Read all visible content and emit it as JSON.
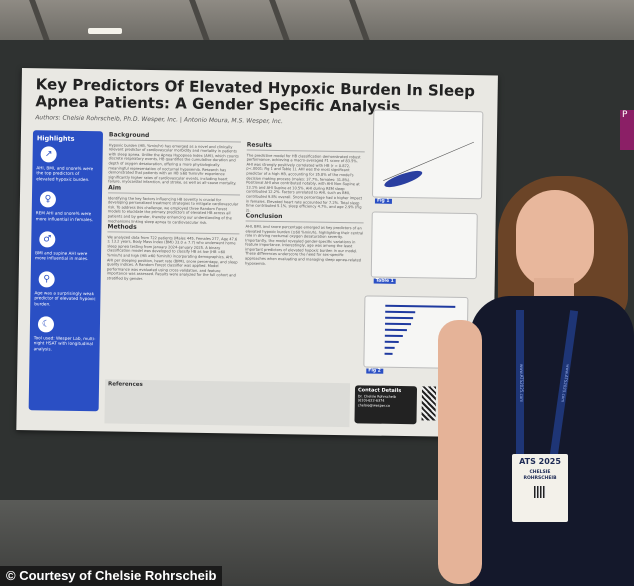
{
  "poster": {
    "title": "Key Predictors Of Elevated Hypoxic Burden In Sleep Apnea Patients: A Gender Specific Analysis",
    "authors": "Authors: Chelsie Rohrscheib, Ph.D. Wesper, Inc. | Antonio Moura, M.S. Wesper, Inc.",
    "highlights": {
      "heading": "Highlights",
      "items": [
        {
          "icon": "chart-icon",
          "text": "AHI, BMI, and snore% were the top predictors of elevated hypoxic burden."
        },
        {
          "icon": "female-icon",
          "text": "REM AHI and snore% were more influential in females."
        },
        {
          "icon": "male-icon",
          "text": "BMI and supine AHI were more influential in males."
        },
        {
          "icon": "elderly-icon",
          "text": "Age was a surprisingly weak predictor of elevated hypoxic burden."
        },
        {
          "icon": "moon-icon",
          "text": "Tool used: Wesper Lab, multi-night HSAT with longitudinal analysis."
        }
      ]
    },
    "background": {
      "heading": "Background",
      "text": "Hypoxic burden (HB, %min/hr) has emerged as a novel and clinically relevant predictor of cardiovascular morbidity and mortality in patients with sleep apnea. Unlike the Apnea Hypopnea Index (AHI), which counts discrete respiratory events, HB quantifies the cumulative duration and depth of oxygen desaturation, offering a more physiologically meaningful representation of nocturnal hypoxemia. Research has demonstrated that patients with an HB ≥60 %min/hr experience significantly higher rates of cardiovascular events, including heart failure, myocardial infarction, and stroke, as well as all-cause mortality."
    },
    "aim": {
      "heading": "Aim",
      "text": "Identifying the key factors influencing HB severity is crucial for developing personalized treatment strategies to mitigate cardiovascular risk. To address this challenge, we employed three Random Forest models to elucidate the primary predictors of elevated HB across all patients and by gender, thereby enhancing our understanding of the mechanisms linking sleep apnea to cardiovascular risk."
    },
    "methods": {
      "heading": "Methods",
      "text": "We analyzed data from 722 patients (Males 445, Females 277, Age 47.6 ± 13.2 years, Body Mass Index (BMI) 33.0 ± 7.7) who underwent home sleep apnea testing from January 2024–January 2025. A binary classification model was developed to classify HB as low (HB <60 %min/h) and high (HB ≥60 %min/h) incorporating demographics, AHI, AHI per sleeping position, heart rate (BPM), snore percentage, and sleep quality indices. A Random Forest classifier was applied. Model performance was evaluated using cross-validation, and feature importance was assessed. Results were analyzed for the full cohort and stratified by gender."
    },
    "results": {
      "heading": "Results",
      "text": "The predictive model for HB classification demonstrated robust performance, achieving a macro-averaged F1 score of 83.5%. AHI was strongly positively correlated with HB (r = 0.872, p<.0001; Fig 1 and Table 1). AHI was the most significant predictor of a high HB, accounting for 35.8% of the model's decision making process (males: 37.7%, females: 31.8%). Positional AHI also contributed notably, with AHI Non-Supine at 13.1% and AHI Supine at 10.5%. AHI during REM sleep contributed 12.2%. Factors unrelated to AHI, such as BMI, contributed 9.8% overall. Snore percentage had a higher impact in females. Elevated heart rate accounted for 7.2%. Total sleep time contributed 5.1%, sleep efficiency 4.7%, and age 2.9% (Fig 2)."
    },
    "conclusion": {
      "heading": "Conclusion",
      "text": "AHI, BMI, and snore percentage emerged as key predictors of an elevated hypoxic burden (≥60 %min/h), highlighting their central role in driving nocturnal oxygen desaturation severity. Importantly, the model revealed gender-specific variations in feature importance. Interestingly, age was among the least important predictors of elevated hypoxic burden in our model. These differences underscore the need for sex-specific approaches when evaluating and managing sleep apnea-related hypoxemia."
    },
    "references": {
      "heading": "References"
    },
    "fig1_label": "Fig 1",
    "table1_label": "Table 1",
    "fig2_label": "Fig 2",
    "contact": {
      "heading": "Contact Details",
      "name": "Dr. Chelsie Rohrscheib",
      "phone": "(610)-622-6374",
      "email": "chelsie@wesper.co"
    }
  },
  "badge": {
    "event": "ATS 2025",
    "first_name": "CHELSIE",
    "last_name": "ROHRSCHEIB",
    "lanyard_text": "www.ATS2025.com"
  },
  "caption": "© Courtesy of Chelsie Rohrscheib",
  "colors": {
    "poster_accent": "#2a4fc4",
    "dress": "#14182b"
  }
}
